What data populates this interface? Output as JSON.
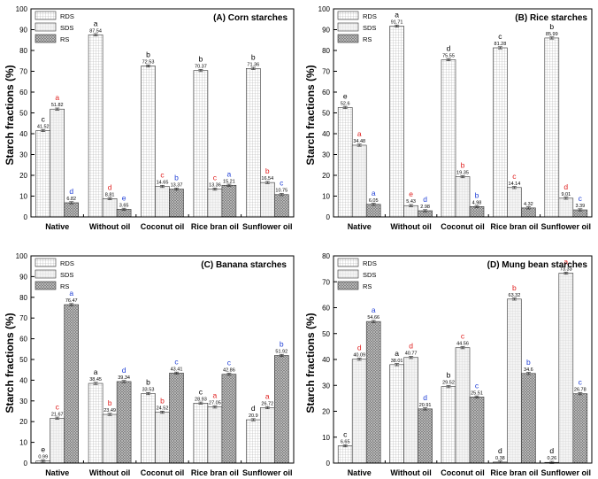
{
  "figure": {
    "sig_colors": {
      "RDS": "#000000",
      "SDS": "#e0201f",
      "RS": "#1f3fd6"
    }
  },
  "chart_data": [
    {
      "type": "bar",
      "title": "(A) Corn starches",
      "ylabel": "Starch fractions (%)",
      "xlabel": "",
      "ylim": [
        0,
        100
      ],
      "yticks": [
        0,
        10,
        20,
        30,
        40,
        50,
        60,
        70,
        80,
        90,
        100
      ],
      "legend_position": "top-left",
      "categories": [
        "Native",
        "Without oil",
        "Coconut oil",
        "Rice bran oil",
        "Sunflower oil"
      ],
      "series": [
        {
          "name": "RDS",
          "values": [
            41.52,
            87.54,
            72.53,
            70.37,
            71.36
          ],
          "labels": [
            "41.52",
            "87.54",
            "72.53",
            "70.37",
            "71.36"
          ],
          "sig": [
            "c",
            "a",
            "b",
            "b",
            "b"
          ]
        },
        {
          "name": "SDS",
          "values": [
            51.82,
            8.81,
            14.65,
            13.36,
            16.54
          ],
          "labels": [
            "51.82",
            "8.81",
            "14.65",
            "13.36",
            "16.54"
          ],
          "sig": [
            "a",
            "d",
            "c",
            "c",
            "b"
          ]
        },
        {
          "name": "RS",
          "values": [
            6.82,
            3.65,
            13.37,
            15.21,
            10.75
          ],
          "labels": [
            "6.82",
            "3.65",
            "13.37",
            "15.21",
            "10.75"
          ],
          "sig": [
            "d",
            "e",
            "b",
            "a",
            "c"
          ]
        }
      ]
    },
    {
      "type": "bar",
      "title": "(B) Rice starches",
      "ylabel": "Starch fractions (%)",
      "xlabel": "",
      "ylim": [
        0,
        100
      ],
      "yticks": [
        0,
        10,
        20,
        30,
        40,
        50,
        60,
        70,
        80,
        90,
        100
      ],
      "legend_position": "top-left",
      "categories": [
        "Native",
        "Without oil",
        "Coconut oil",
        "Rice bran oil",
        "Sunflower oil"
      ],
      "series": [
        {
          "name": "RDS",
          "values": [
            52.6,
            91.71,
            75.55,
            81.28,
            85.99
          ],
          "labels": [
            "52.6",
            "91.71",
            "75.55",
            "81.28",
            "85.99"
          ],
          "sig": [
            "e",
            "a",
            "d",
            "c",
            "b"
          ]
        },
        {
          "name": "SDS",
          "values": [
            34.48,
            5.43,
            19.35,
            14.14,
            9.01
          ],
          "labels": [
            "34.48",
            "5.43",
            "19.35",
            "14.14",
            "9.01"
          ],
          "sig": [
            "a",
            "e",
            "b",
            "c",
            "d"
          ]
        },
        {
          "name": "RS",
          "values": [
            6.05,
            2.98,
            4.98,
            4.32,
            3.39
          ],
          "labels": [
            "6.05",
            "2.98",
            "4.98",
            "4.32",
            "3.39"
          ],
          "sig": [
            "a",
            "d",
            "b",
            "",
            "c"
          ]
        }
      ]
    },
    {
      "type": "bar",
      "title": "(C) Banana starches",
      "ylabel": "Starch fractions (%)",
      "xlabel": "",
      "ylim": [
        0,
        100
      ],
      "yticks": [
        0,
        10,
        20,
        30,
        40,
        50,
        60,
        70,
        80,
        90,
        100
      ],
      "legend_position": "top-left",
      "categories": [
        "Native",
        "Without oil",
        "Coconut oil",
        "Rice bran oil",
        "Sunflower oil"
      ],
      "series": [
        {
          "name": "RDS",
          "values": [
            0.99,
            38.45,
            33.53,
            28.93,
            20.9
          ],
          "labels": [
            "0.99",
            "38.45",
            "33.53",
            "28.93",
            "20.9"
          ],
          "sig": [
            "e",
            "a",
            "b",
            "c",
            "d"
          ]
        },
        {
          "name": "SDS",
          "values": [
            21.67,
            23.49,
            24.52,
            27.05,
            26.72
          ],
          "labels": [
            "21.67",
            "23.49",
            "24.52",
            "27.05",
            "26.72"
          ],
          "sig": [
            "c",
            "b",
            "b",
            "a",
            "a"
          ]
        },
        {
          "name": "RS",
          "values": [
            76.47,
            39.34,
            43.41,
            42.86,
            51.92
          ],
          "labels": [
            "76.47",
            "39.34",
            "43.41",
            "42.86",
            "51.92"
          ],
          "sig": [
            "a",
            "d",
            "c",
            "c",
            "b"
          ]
        }
      ]
    },
    {
      "type": "bar",
      "title": "(D) Mung bean starches",
      "ylabel": "Starch fractions (%)",
      "xlabel": "",
      "ylim": [
        0,
        80
      ],
      "yticks": [
        0,
        10,
        20,
        30,
        40,
        50,
        60,
        70,
        80
      ],
      "legend_position": "top-left",
      "categories": [
        "Native",
        "Without oil",
        "Coconut oil",
        "Rice bran oil",
        "Sunflower oil"
      ],
      "series": [
        {
          "name": "RDS",
          "values": [
            6.65,
            38.01,
            29.52,
            0.38,
            0.26
          ],
          "labels": [
            "6.65",
            "38.01",
            "29.52",
            "0.38",
            "0.26"
          ],
          "sig": [
            "c",
            "a",
            "b",
            "d",
            "d"
          ]
        },
        {
          "name": "SDS",
          "values": [
            40.09,
            40.77,
            44.56,
            63.32,
            73.33
          ],
          "labels": [
            "40.09",
            "40.77",
            "44.56",
            "63.32",
            "73.33"
          ],
          "sig": [
            "d",
            "d",
            "c",
            "b",
            "a"
          ]
        },
        {
          "name": "RS",
          "values": [
            54.66,
            20.91,
            25.51,
            34.6,
            26.78
          ],
          "labels": [
            "54.66",
            "20.91",
            "25.51",
            "34.6",
            "26.78"
          ],
          "sig": [
            "a",
            "d",
            "c",
            "b",
            "c"
          ]
        }
      ]
    }
  ]
}
